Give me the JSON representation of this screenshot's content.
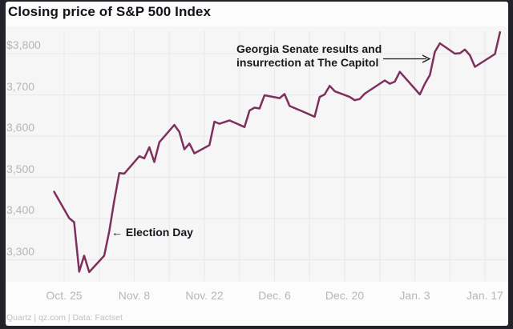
{
  "header": {
    "title": "Closing price of S&P 500 Index"
  },
  "footer": {
    "credit": "Quartz | qz.com | Data: Factset"
  },
  "frame": {
    "bg": "#22232a",
    "card_bg": "#fcfcfd",
    "plot_bg": "#f6f6f7",
    "grid_color": "#e8e8ea"
  },
  "chart_data": {
    "type": "line",
    "title": "Closing price of S&P 500 Index",
    "xlabel": "",
    "ylabel": "",
    "ylim": [
      3250,
      3870
    ],
    "grid": true,
    "legend": "none",
    "line_color": "#7e2f5c",
    "axis_label_color": "#b5b5bb",
    "y_ticks": [
      {
        "value": 3800,
        "label": "$3,800"
      },
      {
        "value": 3700,
        "label": "3,700"
      },
      {
        "value": 3600,
        "label": "3,600"
      },
      {
        "value": 3500,
        "label": "3,500"
      },
      {
        "value": 3400,
        "label": "3,400"
      },
      {
        "value": 3300,
        "label": "3,300"
      }
    ],
    "x_ticks": [
      {
        "date": "2020-10-25",
        "label": "Oct. 25"
      },
      {
        "date": "2020-11-08",
        "label": "Nov. 8"
      },
      {
        "date": "2020-11-22",
        "label": "Nov. 22"
      },
      {
        "date": "2020-12-06",
        "label": "Dec. 6"
      },
      {
        "date": "2020-12-20",
        "label": "Dec. 20"
      },
      {
        "date": "2021-01-03",
        "label": "Jan. 3"
      },
      {
        "date": "2021-01-17",
        "label": "Jan. 17"
      }
    ],
    "annotations": [
      {
        "id": "election",
        "text": "← Election Day",
        "points_to": "2020-11-03"
      },
      {
        "id": "georgia",
        "lines": [
          "Georgia Senate results and",
          "insurrection at The Capitol"
        ],
        "points_to": "2021-01-06"
      }
    ],
    "series": [
      {
        "name": "S&P 500 closing price",
        "points": [
          {
            "date": "2020-10-23",
            "close": 3465
          },
          {
            "date": "2020-10-26",
            "close": 3401
          },
          {
            "date": "2020-10-27",
            "close": 3391
          },
          {
            "date": "2020-10-28",
            "close": 3271
          },
          {
            "date": "2020-10-29",
            "close": 3310
          },
          {
            "date": "2020-10-30",
            "close": 3270
          },
          {
            "date": "2020-11-02",
            "close": 3310
          },
          {
            "date": "2020-11-03",
            "close": 3369
          },
          {
            "date": "2020-11-04",
            "close": 3443
          },
          {
            "date": "2020-11-05",
            "close": 3510
          },
          {
            "date": "2020-11-06",
            "close": 3509
          },
          {
            "date": "2020-11-09",
            "close": 3551
          },
          {
            "date": "2020-11-10",
            "close": 3546
          },
          {
            "date": "2020-11-11",
            "close": 3573
          },
          {
            "date": "2020-11-12",
            "close": 3537
          },
          {
            "date": "2020-11-13",
            "close": 3585
          },
          {
            "date": "2020-11-16",
            "close": 3627
          },
          {
            "date": "2020-11-17",
            "close": 3610
          },
          {
            "date": "2020-11-18",
            "close": 3568
          },
          {
            "date": "2020-11-19",
            "close": 3582
          },
          {
            "date": "2020-11-20",
            "close": 3558
          },
          {
            "date": "2020-11-23",
            "close": 3578
          },
          {
            "date": "2020-11-24",
            "close": 3635
          },
          {
            "date": "2020-11-25",
            "close": 3630
          },
          {
            "date": "2020-11-27",
            "close": 3638
          },
          {
            "date": "2020-11-30",
            "close": 3622
          },
          {
            "date": "2020-12-01",
            "close": 3662
          },
          {
            "date": "2020-12-02",
            "close": 3669
          },
          {
            "date": "2020-12-03",
            "close": 3667
          },
          {
            "date": "2020-12-04",
            "close": 3699
          },
          {
            "date": "2020-12-07",
            "close": 3692
          },
          {
            "date": "2020-12-08",
            "close": 3702
          },
          {
            "date": "2020-12-09",
            "close": 3673
          },
          {
            "date": "2020-12-10",
            "close": 3668
          },
          {
            "date": "2020-12-11",
            "close": 3663
          },
          {
            "date": "2020-12-14",
            "close": 3647
          },
          {
            "date": "2020-12-15",
            "close": 3695
          },
          {
            "date": "2020-12-16",
            "close": 3701
          },
          {
            "date": "2020-12-17",
            "close": 3722
          },
          {
            "date": "2020-12-18",
            "close": 3709
          },
          {
            "date": "2020-12-21",
            "close": 3695
          },
          {
            "date": "2020-12-22",
            "close": 3687
          },
          {
            "date": "2020-12-23",
            "close": 3690
          },
          {
            "date": "2020-12-24",
            "close": 3703
          },
          {
            "date": "2020-12-28",
            "close": 3735
          },
          {
            "date": "2020-12-29",
            "close": 3727
          },
          {
            "date": "2020-12-30",
            "close": 3732
          },
          {
            "date": "2020-12-31",
            "close": 3756
          },
          {
            "date": "2021-01-04",
            "close": 3701
          },
          {
            "date": "2021-01-05",
            "close": 3727
          },
          {
            "date": "2021-01-06",
            "close": 3748
          },
          {
            "date": "2021-01-07",
            "close": 3804
          },
          {
            "date": "2021-01-08",
            "close": 3825
          },
          {
            "date": "2021-01-11",
            "close": 3800
          },
          {
            "date": "2021-01-12",
            "close": 3801
          },
          {
            "date": "2021-01-13",
            "close": 3810
          },
          {
            "date": "2021-01-14",
            "close": 3796
          },
          {
            "date": "2021-01-15",
            "close": 3768
          },
          {
            "date": "2021-01-19",
            "close": 3799
          },
          {
            "date": "2021-01-20",
            "close": 3852
          }
        ]
      }
    ]
  }
}
